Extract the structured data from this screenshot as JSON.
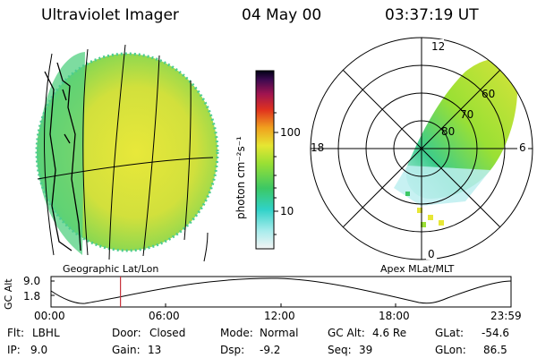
{
  "header": {
    "instrument": "Ultraviolet Imager",
    "date": "04 May 00",
    "time": "03:37:19 UT"
  },
  "colorbar": {
    "unit_label": "photon cm⁻²s⁻¹",
    "ticks": [
      "100",
      "10"
    ]
  },
  "left_panel": {
    "caption": "Geographic Lat/Lon"
  },
  "right_panel": {
    "caption": "Apex MLat/MLT",
    "mlt_labels": {
      "top": "12",
      "left": "18",
      "right": "6",
      "bottom": "0"
    },
    "lat_labels": [
      "60",
      "70",
      "80"
    ]
  },
  "alt_plot": {
    "ylabel": "GC Alt",
    "yticks": [
      "9.0",
      "1.8"
    ],
    "xticks": [
      "00:00",
      "06:00",
      "12:00",
      "18:00",
      "23:59"
    ],
    "marker_time_fraction": 0.151
  },
  "info": {
    "row1": [
      {
        "label": "Flt:",
        "value": "LBHL"
      },
      {
        "label": "Door:",
        "value": "Closed"
      },
      {
        "label": "Mode:",
        "value": "Normal"
      },
      {
        "label": "GC Alt:",
        "value": "4.6 Re"
      },
      {
        "label": "GLat:",
        "value": "-54.6"
      }
    ],
    "row2": [
      {
        "label": "IP:",
        "value": "9.0"
      },
      {
        "label": "Gain:",
        "value": "13"
      },
      {
        "label": "Dsp:",
        "value": "-9.2"
      },
      {
        "label": "Seq:",
        "value": "39"
      },
      {
        "label": "GLon:",
        "value": "86.5"
      }
    ]
  },
  "colors": {
    "disk_yellow": "#e6e636",
    "disk_green": "#5cd25c",
    "disk_cyan": "#3cd2c8",
    "marker_red": "#c8323c"
  }
}
